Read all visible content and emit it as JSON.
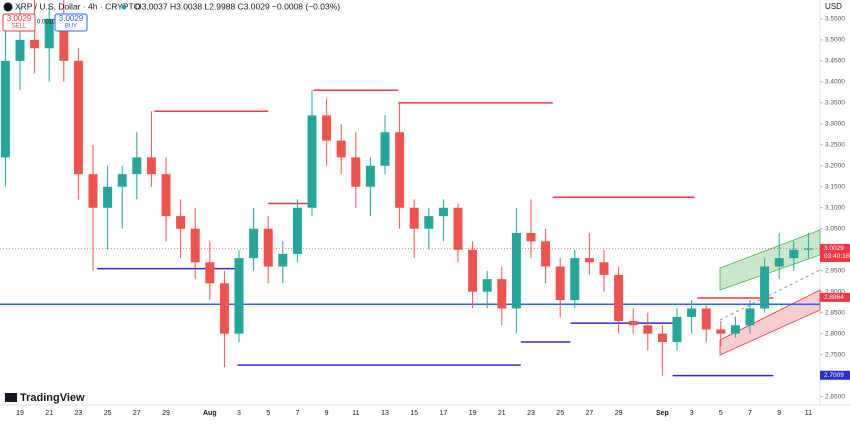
{
  "header": {
    "symbol": "XRP / U.S. Dollar · 4h · CRYPTO",
    "ohlc": "O3.0037 H3.0038 L2.9988 C3.0029 −0.0008 (−0.03%)",
    "sell_price": "3.0029",
    "sell": "SELL",
    "spread": "0.0010",
    "buy_price": "3.0029",
    "buy": "BUY",
    "currency": "USD",
    "brand": "TradingView"
  },
  "chart_data": {
    "type": "candlestick",
    "categories": [
      null,
      "19",
      null,
      "21",
      null,
      "23",
      null,
      "25",
      null,
      "27",
      null,
      "29",
      null,
      null,
      "Aug",
      null,
      "3",
      null,
      "5",
      null,
      "7",
      null,
      "9",
      null,
      "11",
      null,
      "13",
      null,
      "15",
      null,
      "17",
      null,
      "19",
      null,
      "21",
      null,
      "23",
      null,
      "25",
      null,
      "27",
      null,
      "29",
      null,
      null,
      "Sep",
      null,
      "3",
      null,
      "5",
      null,
      "7",
      null,
      "9",
      null,
      "11"
    ],
    "open": [
      3.22,
      3.45,
      3.5,
      3.48,
      3.55,
      3.45,
      3.18,
      3.1,
      3.15,
      3.18,
      3.22,
      3.18,
      3.08,
      3.05,
      2.97,
      2.92,
      2.8,
      2.98,
      3.05,
      2.96,
      2.99,
      3.1,
      3.32,
      3.26,
      3.22,
      3.15,
      3.2,
      3.28,
      3.1,
      3.05,
      3.08,
      3.1,
      3.0,
      2.9,
      2.93,
      2.86,
      3.04,
      3.02,
      2.96,
      2.88,
      2.98,
      2.97,
      2.94,
      2.83,
      2.82,
      2.8,
      2.78,
      2.84,
      2.86,
      2.81,
      2.8,
      2.82,
      2.86,
      2.96,
      2.98,
      3.0
    ],
    "high": [
      3.55,
      3.58,
      3.6,
      3.58,
      3.6,
      3.48,
      3.25,
      3.2,
      3.2,
      3.28,
      3.33,
      3.22,
      3.12,
      3.1,
      3.02,
      2.95,
      3.0,
      3.1,
      3.08,
      3.02,
      3.12,
      3.38,
      3.36,
      3.3,
      3.28,
      3.22,
      3.32,
      3.35,
      3.12,
      3.1,
      3.12,
      3.11,
      3.02,
      2.95,
      2.96,
      3.1,
      3.12,
      3.05,
      2.98,
      3.0,
      3.04,
      3.0,
      2.96,
      2.86,
      2.85,
      2.82,
      2.86,
      2.88,
      2.87,
      2.83,
      2.84,
      2.88,
      2.98,
      3.04,
      3.02,
      3.04
    ],
    "low": [
      3.15,
      3.38,
      3.42,
      3.4,
      3.4,
      3.12,
      2.95,
      3.0,
      3.05,
      3.12,
      3.15,
      3.02,
      2.98,
      2.93,
      2.88,
      2.72,
      2.78,
      2.95,
      2.92,
      2.92,
      2.97,
      3.08,
      3.2,
      3.18,
      3.1,
      3.08,
      3.18,
      3.05,
      2.98,
      3.0,
      3.02,
      2.97,
      2.86,
      2.86,
      2.82,
      2.8,
      2.98,
      2.92,
      2.84,
      2.86,
      2.94,
      2.9,
      2.8,
      2.8,
      2.76,
      2.7,
      2.76,
      2.8,
      2.78,
      2.77,
      2.79,
      2.8,
      2.85,
      2.93,
      2.95,
      2.98
    ],
    "close": [
      3.45,
      3.5,
      3.48,
      3.55,
      3.45,
      3.18,
      3.1,
      3.15,
      3.18,
      3.22,
      3.18,
      3.08,
      3.05,
      2.97,
      2.92,
      2.8,
      2.98,
      3.05,
      2.96,
      2.99,
      3.1,
      3.32,
      3.26,
      3.22,
      3.15,
      3.2,
      3.28,
      3.1,
      3.05,
      3.08,
      3.1,
      3.0,
      2.9,
      2.93,
      2.86,
      3.04,
      3.02,
      2.96,
      2.88,
      2.98,
      2.97,
      2.94,
      2.83,
      2.82,
      2.8,
      2.78,
      2.84,
      2.86,
      2.81,
      2.8,
      2.82,
      2.86,
      2.96,
      2.98,
      3.0,
      3.0029
    ],
    "up_color": "#26a69a",
    "down_color": "#ef5350",
    "ylim": [
      2.63,
      3.595
    ],
    "yticks": [
      {
        "value": 2.65,
        "label": "2.6500"
      },
      {
        "value": 2.7,
        "label": "2.7000"
      },
      {
        "value": 2.75,
        "label": "2.7500"
      },
      {
        "value": 2.8,
        "label": "2.8000"
      },
      {
        "value": 2.85,
        "label": "2.8500"
      },
      {
        "value": 2.9,
        "label": "2.9000"
      },
      {
        "value": 2.95,
        "label": "2.9500"
      },
      {
        "value": 3,
        "label": "3.0000"
      },
      {
        "value": 3.05,
        "label": "3.0500"
      },
      {
        "value": 3.1,
        "label": "3.1000"
      },
      {
        "value": 3.15,
        "label": "3.1500"
      },
      {
        "value": 3.2,
        "label": "3.2000"
      },
      {
        "value": 3.25,
        "label": "3.2500"
      },
      {
        "value": 3.3,
        "label": "3.3000"
      },
      {
        "value": 3.35,
        "label": "3.3500"
      },
      {
        "value": 3.4,
        "label": "3.4000"
      },
      {
        "value": 3.45,
        "label": "3.4500"
      },
      {
        "value": 3.5,
        "label": "3.5000"
      },
      {
        "value": 3.55,
        "label": "3.5500"
      }
    ],
    "grid": false,
    "levels": [
      {
        "value": 3.33,
        "x": [
          10.2,
          18.0
        ],
        "color": "#f23645"
      },
      {
        "value": 3.11,
        "x": [
          18.0,
          21.1
        ],
        "color": "#f23645"
      },
      {
        "value": 3.38,
        "x": [
          21.1,
          26.9
        ],
        "color": "#f23645"
      },
      {
        "value": 3.35,
        "x": [
          26.9,
          37.5
        ],
        "color": "#f23645"
      },
      {
        "value": 3.125,
        "x": [
          37.5,
          47.2
        ],
        "color": "#f23645"
      },
      {
        "value": 2.885,
        "x": [
          47.4,
          52.6
        ],
        "color": "#f23645"
      },
      {
        "value": 2.955,
        "x": [
          6.3,
          15.9
        ],
        "color": "#2a2ed0"
      },
      {
        "value": 2.725,
        "x": [
          15.9,
          35.3
        ],
        "color": "#2a2ed0"
      },
      {
        "value": 2.78,
        "x": [
          35.3,
          38.7
        ],
        "color": "#2a2ed0"
      },
      {
        "value": 2.825,
        "x": [
          38.7,
          45.7
        ],
        "color": "#2a2ed0"
      },
      {
        "value": 2.7,
        "x": [
          45.7,
          52.6
        ],
        "color": "#2a2ed0"
      },
      {
        "value": 2.87,
        "x": [
          -0.4,
          55.8
        ],
        "color": "#2962ff"
      }
    ],
    "price_labels": [
      {
        "value": 3.0029,
        "label": "3.0029",
        "countdown": "03:40:18",
        "color": "#f23645"
      },
      {
        "value": 2.8864,
        "label": "2.8864",
        "color": "#f23645"
      },
      {
        "value": 2.7009,
        "label": "2.7009",
        "color": "#2a2ed0"
      }
    ]
  }
}
